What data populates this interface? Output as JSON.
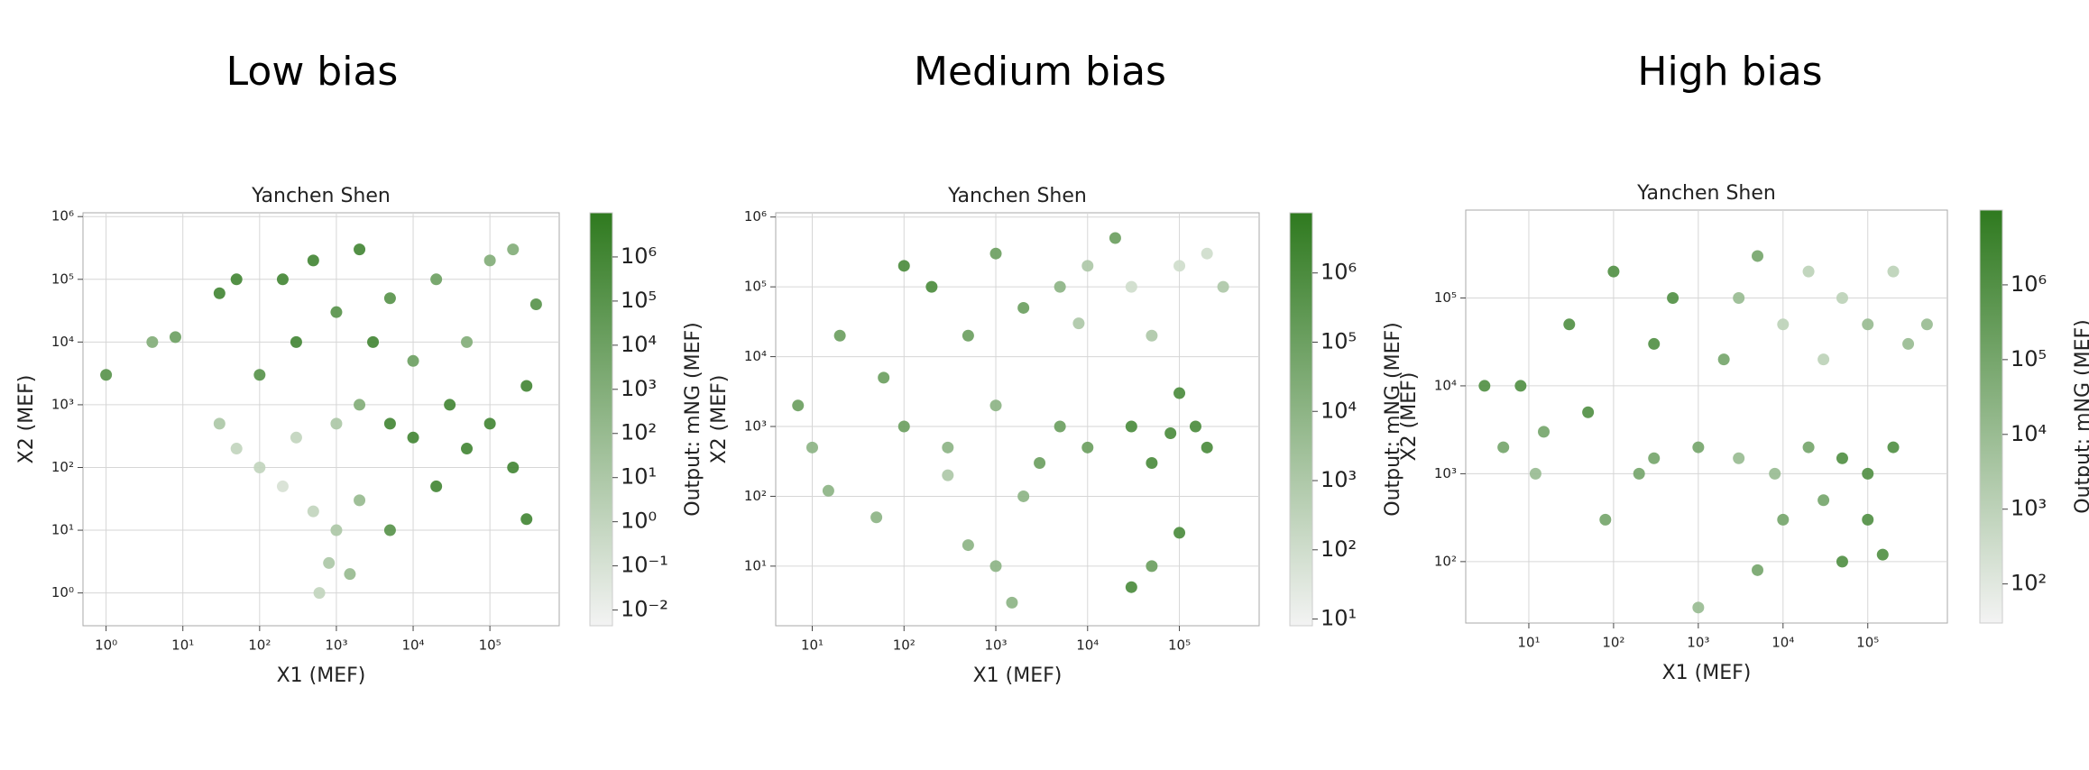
{
  "chart_data": [
    {
      "type": "scatter",
      "heading": "Low bias",
      "title": "Yanchen Shen",
      "xlabel": "X1 (MEF)",
      "ylabel": "X2 (MEF)",
      "colorbar_label": "Output: mNG (MEF)",
      "log_scale": true,
      "grid": true,
      "colormap": [
        "#f3f3f3",
        "#2f7a1f"
      ],
      "xlim": [
        0.5,
        800000
      ],
      "ylim": [
        0.3,
        1150000
      ],
      "clim": [
        0.0044,
        10000000
      ],
      "xticks": [
        {
          "value": 1,
          "label": "10⁰"
        },
        {
          "value": 10,
          "label": "10¹"
        },
        {
          "value": 100,
          "label": "10²"
        },
        {
          "value": 1000,
          "label": "10³"
        },
        {
          "value": 10000,
          "label": "10⁴"
        },
        {
          "value": 100000,
          "label": "10⁵"
        }
      ],
      "yticks": [
        {
          "value": 1,
          "label": "10⁰"
        },
        {
          "value": 10,
          "label": "10¹"
        },
        {
          "value": 100,
          "label": "10²"
        },
        {
          "value": 1000,
          "label": "10³"
        },
        {
          "value": 10000,
          "label": "10⁴"
        },
        {
          "value": 100000,
          "label": "10⁵"
        },
        {
          "value": 1000000,
          "label": "10⁶"
        }
      ],
      "cticks": [
        {
          "value": 0.01,
          "label": "10⁻²"
        },
        {
          "value": 0.1,
          "label": "10⁻¹"
        },
        {
          "value": 1,
          "label": "10⁰"
        },
        {
          "value": 10,
          "label": "10¹"
        },
        {
          "value": 100,
          "label": "10²"
        },
        {
          "value": 1000,
          "label": "10³"
        },
        {
          "value": 10000,
          "label": "10⁴"
        },
        {
          "value": 100000,
          "label": "10⁵"
        },
        {
          "value": 1000000,
          "label": "10⁶"
        }
      ],
      "x": [
        1,
        4,
        8,
        30,
        50,
        200,
        500,
        2000,
        5000,
        20000,
        100000,
        200000,
        50000,
        10000,
        3000,
        1000,
        300,
        100,
        30,
        50,
        100,
        200,
        500,
        1000,
        2000,
        800,
        600,
        1500,
        300,
        1000,
        2000,
        5000,
        10000,
        30000,
        50000,
        100000,
        200000,
        300000,
        20000,
        5000,
        300000,
        400000
      ],
      "y": [
        3000,
        10000,
        12000,
        60000,
        100000,
        100000,
        200000,
        300000,
        50000,
        100000,
        200000,
        300000,
        10000,
        5000,
        10000,
        30000,
        10000,
        3000,
        500,
        200,
        100,
        50,
        20,
        10,
        30,
        3,
        1,
        2,
        300,
        500,
        1000,
        500,
        300,
        1000,
        200,
        500,
        100,
        2000,
        50,
        10,
        15,
        40000
      ],
      "color_values": [
        100000,
        1000,
        10000,
        1000000,
        1000000,
        1000000,
        1000000,
        1000000,
        100000,
        10000,
        1000,
        1000,
        1000,
        10000,
        1000000,
        100000,
        1000000,
        100000,
        10,
        1,
        1,
        0.1,
        1,
        10,
        100,
        10,
        1,
        100,
        1,
        10,
        1000,
        1000000,
        1000000,
        1000000,
        1000000,
        1000000,
        1000000,
        1000000,
        1000000,
        100000,
        1000000,
        100000
      ]
    },
    {
      "type": "scatter",
      "heading": "Medium bias",
      "title": "Yanchen Shen",
      "xlabel": "X1 (MEF)",
      "ylabel": "X2 (MEF)",
      "colorbar_label": "Output: mNG (MEF)",
      "log_scale": true,
      "grid": true,
      "colormap": [
        "#f3f3f3",
        "#2f7a1f"
      ],
      "xlim": [
        4,
        740000
      ],
      "ylim": [
        1.4,
        1150000
      ],
      "clim": [
        8,
        7400000
      ],
      "xticks": [
        {
          "value": 10,
          "label": "10¹"
        },
        {
          "value": 100,
          "label": "10²"
        },
        {
          "value": 1000,
          "label": "10³"
        },
        {
          "value": 10000,
          "label": "10⁴"
        },
        {
          "value": 100000,
          "label": "10⁵"
        }
      ],
      "yticks": [
        {
          "value": 10,
          "label": "10¹"
        },
        {
          "value": 100,
          "label": "10²"
        },
        {
          "value": 1000,
          "label": "10³"
        },
        {
          "value": 10000,
          "label": "10⁴"
        },
        {
          "value": 100000,
          "label": "10⁵"
        },
        {
          "value": 1000000,
          "label": "10⁶"
        }
      ],
      "cticks": [
        {
          "value": 10,
          "label": "10¹"
        },
        {
          "value": 100,
          "label": "10²"
        },
        {
          "value": 1000,
          "label": "10³"
        },
        {
          "value": 10000,
          "label": "10⁴"
        },
        {
          "value": 100000,
          "label": "10⁵"
        },
        {
          "value": 1000000,
          "label": "10⁶"
        }
      ],
      "x": [
        7,
        10,
        15,
        20,
        50,
        60,
        100,
        100,
        200,
        300,
        500,
        1000,
        1000,
        1000,
        1500,
        2000,
        3000,
        5000,
        8000,
        10000,
        20000,
        30000,
        50000,
        100000,
        200000,
        300000,
        5000,
        10000,
        30000,
        50000,
        80000,
        100000,
        150000,
        200000,
        100000,
        30000,
        50000,
        2000,
        500,
        300
      ],
      "y": [
        2000,
        500,
        120,
        20000,
        50,
        5000,
        200000,
        1000,
        100000,
        500,
        20000,
        300000,
        2000,
        10,
        3,
        50000,
        300,
        100000,
        30000,
        200000,
        500000,
        100000,
        20000,
        200000,
        300000,
        100000,
        1000,
        500,
        1000,
        300,
        800,
        3000,
        1000,
        500,
        30,
        5,
        10,
        100,
        20,
        200
      ],
      "color_values": [
        100000,
        10000,
        10000,
        100000,
        10000,
        100000,
        1000000,
        100000,
        1000000,
        10000,
        100000,
        100000,
        10000,
        10000,
        10000,
        100000,
        100000,
        10000,
        1000,
        1000,
        100000,
        100,
        1000,
        100,
        100,
        1000,
        100000,
        100000,
        1000000,
        1000000,
        1000000,
        1000000,
        1000000,
        1000000,
        1000000,
        1000000,
        100000,
        10000,
        10000,
        1000
      ]
    },
    {
      "type": "scatter",
      "heading": "High bias",
      "title": "Yanchen Shen",
      "xlabel": "X1 (MEF)",
      "ylabel": "X2 (MEF)",
      "colorbar_label": "Output: mNG (MEF)",
      "log_scale": true,
      "grid": true,
      "colormap": [
        "#f3f3f3",
        "#2f7a1f"
      ],
      "xlim": [
        1.8,
        870000
      ],
      "ylim": [
        20,
        1000000
      ],
      "clim": [
        30,
        10000000
      ],
      "xticks": [
        {
          "value": 10,
          "label": "10¹"
        },
        {
          "value": 100,
          "label": "10²"
        },
        {
          "value": 1000,
          "label": "10³"
        },
        {
          "value": 10000,
          "label": "10⁴"
        },
        {
          "value": 100000,
          "label": "10⁵"
        }
      ],
      "yticks": [
        {
          "value": 100,
          "label": "10²"
        },
        {
          "value": 1000,
          "label": "10³"
        },
        {
          "value": 10000,
          "label": "10⁴"
        },
        {
          "value": 100000,
          "label": "10⁵"
        }
      ],
      "cticks": [
        {
          "value": 100,
          "label": "10²"
        },
        {
          "value": 1000,
          "label": "10³"
        },
        {
          "value": 10000,
          "label": "10⁴"
        },
        {
          "value": 100000,
          "label": "10⁵"
        },
        {
          "value": 1000000,
          "label": "10⁶"
        }
      ],
      "x": [
        3,
        5,
        8,
        12,
        15,
        30,
        50,
        80,
        100,
        200,
        300,
        500,
        1000,
        1000,
        2000,
        3000,
        5000,
        5000,
        10000,
        20000,
        30000,
        50000,
        100000,
        200000,
        300000,
        500000,
        3000,
        8000,
        20000,
        50000,
        100000,
        200000,
        100000,
        50000,
        150000,
        30000,
        10000,
        300
      ],
      "y": [
        10000,
        2000,
        10000,
        1000,
        3000,
        50000,
        5000,
        300,
        200000,
        1000,
        30000,
        100000,
        2000,
        30,
        20000,
        100000,
        300000,
        80,
        50000,
        200000,
        20000,
        100000,
        50000,
        200000,
        30000,
        50000,
        1500,
        1000,
        2000,
        1500,
        1000,
        2000,
        300,
        100,
        120,
        500,
        300,
        1500
      ],
      "color_values": [
        1000000,
        100000,
        1000000,
        10000,
        100000,
        1000000,
        1000000,
        100000,
        1000000,
        100000,
        1000000,
        1000000,
        100000,
        10000,
        100000,
        10000,
        100000,
        100000,
        1000,
        1000,
        1000,
        1000,
        10000,
        1000,
        10000,
        10000,
        10000,
        10000,
        100000,
        1000000,
        1000000,
        1000000,
        1000000,
        1000000,
        1000000,
        100000,
        100000,
        100000
      ]
    }
  ]
}
